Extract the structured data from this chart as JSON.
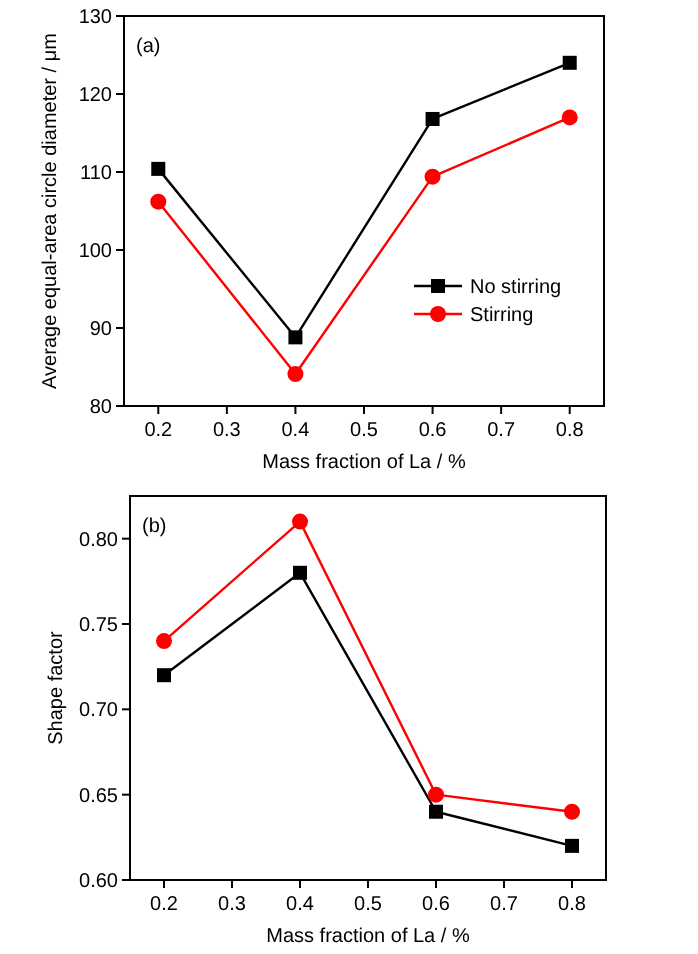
{
  "chart_data": [
    {
      "type": "line",
      "xlabel": "Mass fraction of La / %",
      "ylabel": "Average equal-area circle diameter / μm",
      "annotations": [
        "(a)"
      ],
      "x": [
        0.2,
        0.4,
        0.6,
        0.8
      ],
      "series": [
        {
          "name": "No stirring",
          "color": "#000000",
          "marker": "square",
          "values": [
            110.4,
            88.8,
            116.8,
            124
          ]
        },
        {
          "name": "Stirring",
          "color": "#ff0000",
          "marker": "circle",
          "values": [
            106.2,
            84.1,
            109.4,
            117
          ]
        }
      ],
      "xlim": [
        0.15,
        0.85
      ],
      "xticks": [
        0.2,
        0.3,
        0.4,
        0.5,
        0.6,
        0.7,
        0.8
      ],
      "ylim": [
        80,
        130
      ],
      "yticks": [
        80,
        90,
        100,
        110,
        120,
        130
      ],
      "legend": "bottom right"
    },
    {
      "type": "line",
      "xlabel": "Mass fraction of La / %",
      "ylabel": "Shape factor",
      "annotations": [
        "(b)"
      ],
      "x": [
        0.2,
        0.4,
        0.6,
        0.8
      ],
      "series": [
        {
          "color": "#000000",
          "marker": "square",
          "values": [
            0.72,
            0.78,
            0.64,
            0.62
          ]
        },
        {
          "color": "#ff0000",
          "marker": "circle",
          "values": [
            0.74,
            0.81,
            0.65,
            0.64
          ]
        }
      ],
      "xlim": [
        0.15,
        0.85
      ],
      "xticks": [
        0.2,
        0.3,
        0.4,
        0.5,
        0.6,
        0.7,
        0.8
      ],
      "ylim": [
        0.6,
        0.825
      ],
      "yticks": [
        {
          "value": 0.6,
          "label": "0.60"
        },
        {
          "value": 0.65,
          "label": "0.65"
        },
        {
          "value": 0.7,
          "label": "0.70"
        },
        {
          "value": 0.75,
          "label": "0.75"
        },
        {
          "value": 0.8,
          "label": "0.80"
        }
      ],
      "legend": false
    }
  ]
}
